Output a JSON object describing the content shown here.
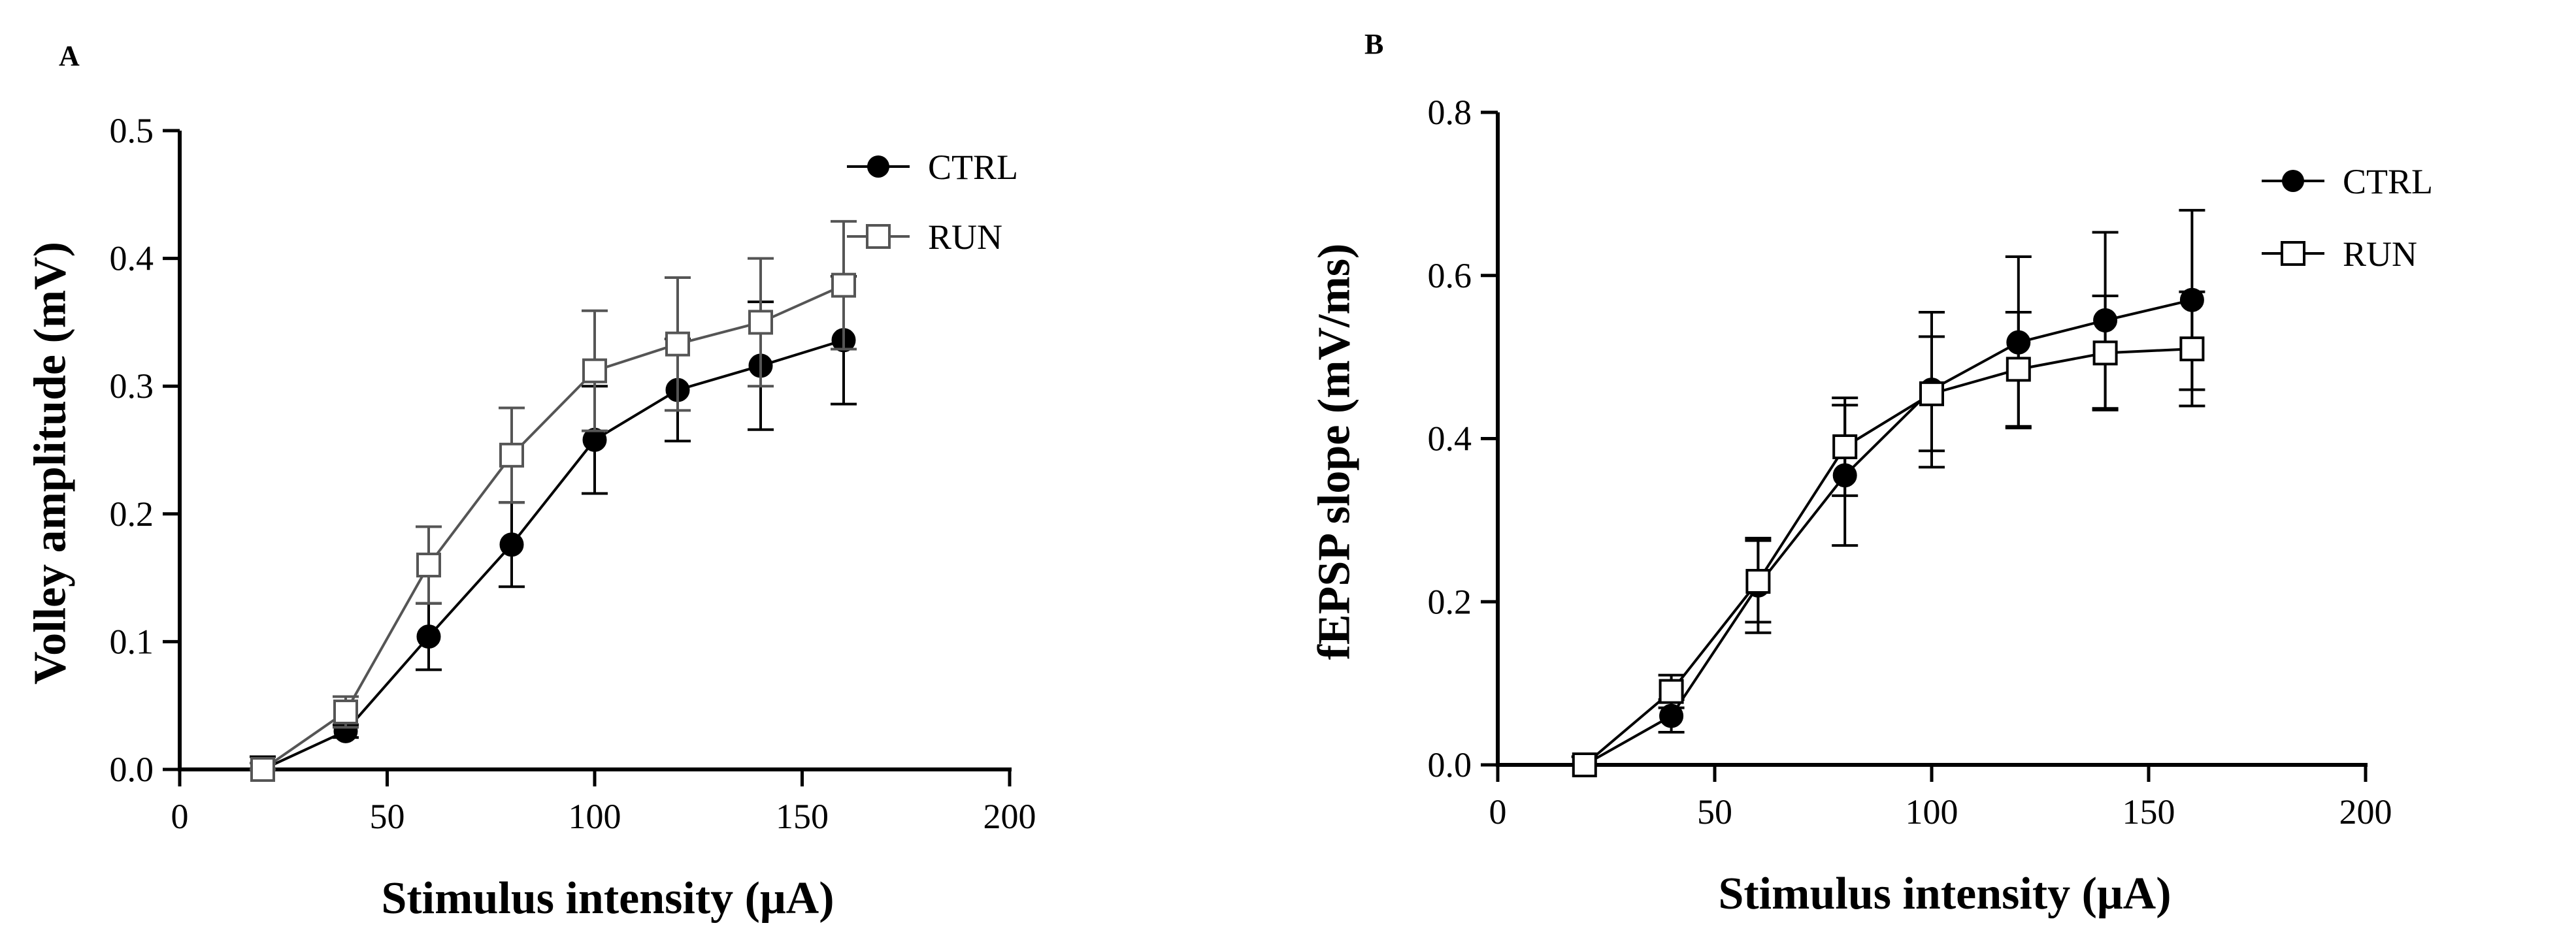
{
  "chart_data": [
    {
      "type": "line",
      "panel": "A",
      "xlabel": "Stimulus intensity (μA)",
      "ylabel": "Volley amplitude (mV)",
      "xlim": [
        0,
        200
      ],
      "ylim": [
        0,
        0.5
      ],
      "xticks": [
        0,
        50,
        100,
        150,
        200
      ],
      "yticks": [
        0.0,
        0.1,
        0.2,
        0.3,
        0.4,
        0.5
      ],
      "xtick_labels": [
        "0",
        "50",
        "100",
        "150",
        "200"
      ],
      "ytick_labels": [
        "0.0",
        "0.1",
        "0.2",
        "0.3",
        "0.4",
        "0.5"
      ],
      "legend": [
        "CTRL",
        "RUN"
      ],
      "legend_position": "top-right",
      "grid": false,
      "series": [
        {
          "name": "CTRL",
          "marker": "filled-circle",
          "color": "#000000",
          "x": [
            20,
            40,
            60,
            80,
            100,
            120,
            140,
            160
          ],
          "y": [
            0.0,
            0.03,
            0.104,
            0.176,
            0.258,
            0.297,
            0.316,
            0.336
          ],
          "err": [
            0.01,
            0.005,
            0.026,
            0.033,
            0.042,
            0.04,
            0.05,
            0.05
          ]
        },
        {
          "name": "RUN",
          "marker": "open-square",
          "color": "#000000",
          "x": [
            20,
            40,
            60,
            80,
            100,
            120,
            140,
            160
          ],
          "y": [
            0.0,
            0.045,
            0.16,
            0.246,
            0.312,
            0.333,
            0.35,
            0.379
          ],
          "err": [
            0.005,
            0.012,
            0.03,
            0.037,
            0.047,
            0.052,
            0.05,
            0.05
          ]
        }
      ]
    },
    {
      "type": "line",
      "panel": "B",
      "xlabel": "Stimulus intensity (μA)",
      "ylabel": "fEPSP slope (mV/ms)",
      "xlim": [
        0,
        200
      ],
      "ylim": [
        0,
        0.8
      ],
      "xticks": [
        0,
        50,
        100,
        150,
        200
      ],
      "yticks": [
        0.0,
        0.2,
        0.4,
        0.6,
        0.8
      ],
      "xtick_labels": [
        "0",
        "50",
        "100",
        "150",
        "200"
      ],
      "ytick_labels": [
        "0.0",
        "0.2",
        "0.4",
        "0.6",
        "0.8"
      ],
      "legend": [
        "CTRL",
        "RUN"
      ],
      "legend_position": "top-right",
      "grid": false,
      "series": [
        {
          "name": "CTRL",
          "marker": "filled-circle",
          "color": "#000000",
          "x": [
            20,
            40,
            60,
            80,
            100,
            120,
            140,
            160
          ],
          "y": [
            0.0,
            0.06,
            0.22,
            0.355,
            0.46,
            0.518,
            0.545,
            0.57
          ],
          "err": [
            0.01,
            0.02,
            0.058,
            0.086,
            0.095,
            0.105,
            0.108,
            0.11
          ]
        },
        {
          "name": "RUN",
          "marker": "open-square",
          "color": "#000000",
          "x": [
            20,
            40,
            60,
            80,
            100,
            120,
            140,
            160
          ],
          "y": [
            0.0,
            0.09,
            0.225,
            0.39,
            0.455,
            0.485,
            0.505,
            0.51
          ],
          "err": [
            0.01,
            0.02,
            0.05,
            0.06,
            0.07,
            0.07,
            0.07,
            0.07
          ]
        }
      ]
    }
  ]
}
